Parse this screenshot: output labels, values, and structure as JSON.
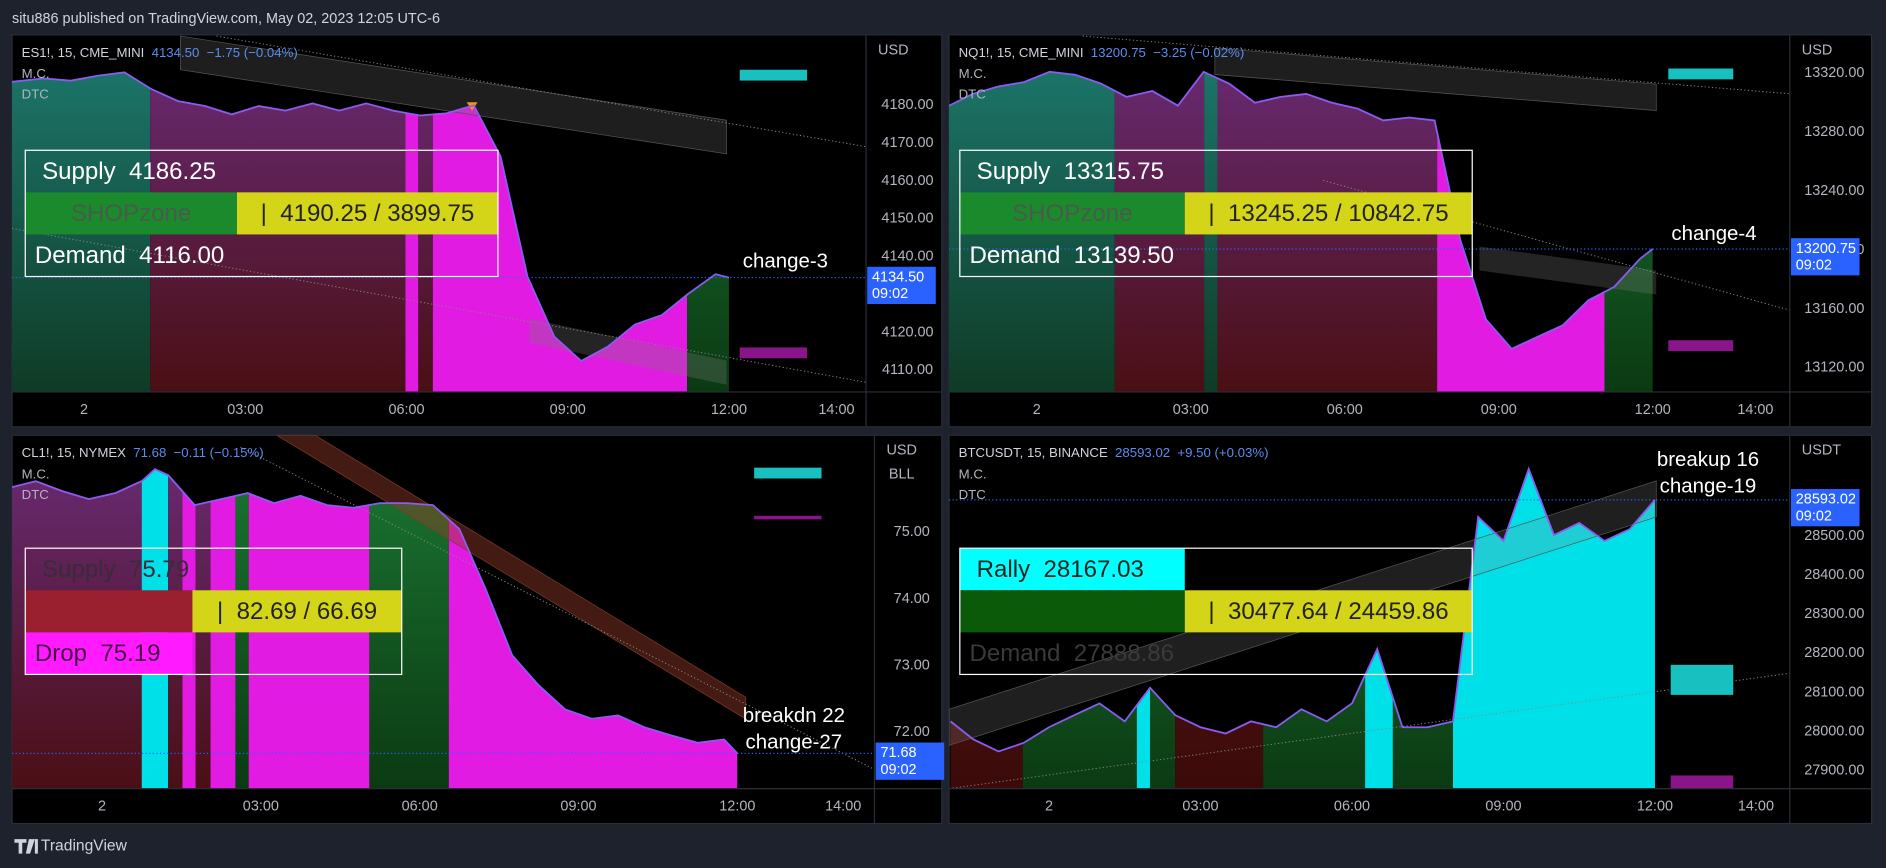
{
  "header": "situ886 published on TradingView.com, May 02, 2023 12:05 UTC-6",
  "footer": "TradingView",
  "chart_data": [
    {
      "type": "area",
      "symbol": "ES1!, 15, CME_MINI",
      "last": "4134.50",
      "change": "−1.75 (−0.04%)",
      "indicators": [
        "M.C.",
        "DTC"
      ],
      "currency": "USD",
      "countdown": "09:02",
      "line_color": "#8a5cf0",
      "price_color": "#2962ff",
      "x": [
        -1.34,
        -0.75,
        -0.25,
        0.25,
        0.75,
        1.25,
        1.75,
        2.25,
        2.75,
        3.25,
        3.75,
        4.25,
        4.75,
        5.25,
        5.75,
        6.25,
        6.75,
        7.25,
        7.75,
        8.25,
        8.75,
        9.25,
        9.75,
        10.25,
        10.75,
        11.25,
        11.75,
        12.0
      ],
      "values": [
        4186.2,
        4187.1,
        4186.5,
        4187.8,
        4188.7,
        4184.3,
        4181.1,
        4179.8,
        4177.6,
        4179.8,
        4178.6,
        4180.5,
        4178.6,
        4180.5,
        4178.6,
        4177.3,
        4177.9,
        4180,
        4166.5,
        4134.8,
        4118.9,
        4112.5,
        4116.3,
        4122.1,
        4124.6,
        4130.3,
        4135.4,
        4134.5
      ],
      "zones": [
        {
          "start": -1.34,
          "end": 1.23,
          "color": "#1d7a70",
          "color2": "#0f3b26"
        },
        {
          "start": 1.23,
          "end": 5.98,
          "color": "#6b2c7a",
          "color2": "#4a0f14"
        },
        {
          "start": 5.98,
          "end": 6.22,
          "color": "#e21be2",
          "color2": "#e21be2"
        },
        {
          "start": 6.22,
          "end": 6.49,
          "color": "#6b2c7a",
          "color2": "#4a0f14"
        },
        {
          "start": 6.49,
          "end": 11.22,
          "color": "#e21be2",
          "color2": "#e21be2"
        },
        {
          "start": 11.22,
          "end": 12.0,
          "color": "#1c7a35",
          "color2": "#0b3a12"
        }
      ],
      "xlim": [
        -1.34,
        14.55
      ],
      "xticks": [
        {
          "value": 0,
          "label": "2"
        },
        {
          "value": 3,
          "label": "03:00"
        },
        {
          "value": 6,
          "label": "06:00"
        },
        {
          "value": 9,
          "label": "09:00"
        },
        {
          "value": 12,
          "label": "12:00"
        },
        {
          "value": 14,
          "label": "14:00"
        }
      ],
      "ylim": [
        4104.3,
        4198.6
      ],
      "yticks": [
        {
          "value": 4110,
          "label": "4110.00"
        },
        {
          "value": 4120,
          "label": "4120.00"
        },
        {
          "value": 4130,
          "label": "4130.00"
        },
        {
          "value": 4140,
          "label": "4140.00"
        },
        {
          "value": 4150,
          "label": "4150.00"
        },
        {
          "value": 4160,
          "label": "4160.00"
        },
        {
          "value": 4170,
          "label": "4170.00"
        },
        {
          "value": 4180,
          "label": "4180.00"
        }
      ],
      "box": {
        "top": "Supply  4186.25",
        "top_color": "#ffffff",
        "mid_left": "SHOPzone",
        "mid_left_bg": "#1a8a2c",
        "mid_left_color": "#4a5a4a",
        "mid_right": "|  4190.25 / 3899.75",
        "mid_right_bg": "#d4d418",
        "mid_right_color": "#222222",
        "bottom": "Demand  4116.00",
        "bottom_color": "#ffffff"
      },
      "annotations": [
        "change-3"
      ]
    },
    {
      "type": "area",
      "symbol": "NQ1!, 15, CME_MINI",
      "last": "13200.75",
      "change": "−3.25 (−0.02%)",
      "indicators": [
        "M.C.",
        "DTC"
      ],
      "currency": "USD",
      "countdown": "09:02",
      "line_color": "#8a5cf0",
      "price_color": "#2962ff",
      "x": [
        -1.71,
        -1.25,
        -0.75,
        -0.25,
        0.25,
        0.75,
        1.25,
        1.75,
        2.25,
        2.75,
        3.25,
        3.75,
        4.25,
        4.75,
        5.25,
        5.75,
        6.25,
        6.75,
        7.25,
        7.75,
        8.25,
        8.75,
        9.25,
        9.75,
        10.25,
        10.75,
        11.25,
        11.75,
        12.0
      ],
      "values": [
        13298,
        13306,
        13311,
        13314,
        13321,
        13319,
        13313,
        13304,
        13308,
        13298,
        13321,
        13313,
        13300,
        13304,
        13306,
        13300,
        13296,
        13288,
        13290,
        13288,
        13207,
        13153,
        13133,
        13141,
        13149,
        13166,
        13175,
        13194,
        13200.75
      ],
      "zones": [
        {
          "start": -1.71,
          "end": 1.52,
          "color": "#1d7a70",
          "color2": "#0f3b26"
        },
        {
          "start": 1.52,
          "end": 3.26,
          "color": "#6b2c7a",
          "color2": "#4a0f14"
        },
        {
          "start": 3.26,
          "end": 3.52,
          "color": "#1d7a70",
          "color2": "#0f3b26"
        },
        {
          "start": 3.52,
          "end": 7.8,
          "color": "#6b2c7a",
          "color2": "#4a0f14"
        },
        {
          "start": 7.8,
          "end": 11.06,
          "color": "#e21be2",
          "color2": "#e21be2"
        },
        {
          "start": 11.06,
          "end": 12.0,
          "color": "#1c7a35",
          "color2": "#0b3a12"
        }
      ],
      "xlim": [
        -1.71,
        14.67
      ],
      "xticks": [
        {
          "value": 0,
          "label": "2"
        },
        {
          "value": 3,
          "label": "03:00"
        },
        {
          "value": 6,
          "label": "06:00"
        },
        {
          "value": 9,
          "label": "09:00"
        },
        {
          "value": 12,
          "label": "12:00"
        },
        {
          "value": 14,
          "label": "14:00"
        }
      ],
      "ylim": [
        13103.7,
        13346.1
      ],
      "yticks": [
        {
          "value": 13120,
          "label": "13120.00"
        },
        {
          "value": 13160,
          "label": "13160.00"
        },
        {
          "value": 13200,
          "label": "13200.00"
        },
        {
          "value": 13240,
          "label": "13240.00"
        },
        {
          "value": 13280,
          "label": "13280.00"
        },
        {
          "value": 13320,
          "label": "13320.00"
        }
      ],
      "box": {
        "top": "Supply  13315.75",
        "top_color": "#ffffff",
        "mid_left": "SHOPzone",
        "mid_left_bg": "#1a8a2c",
        "mid_left_color": "#4a5a4a",
        "mid_right": "|  13245.25 / 10842.75",
        "mid_right_bg": "#d4d418",
        "mid_right_color": "#222222",
        "bottom": "Demand  13139.50",
        "bottom_color": "#ffffff"
      },
      "annotations": [
        "change-4"
      ]
    },
    {
      "type": "area",
      "symbol": "CL1!, 15, NYMEX",
      "last": "71.68",
      "change": "−0.11 (−0.15%)",
      "indicators": [
        "M.C.",
        "DTC"
      ],
      "currency": "USD",
      "unit": "BLL",
      "countdown": "09:02",
      "line_color": "#8a5cf0",
      "price_color": "#2962ff",
      "x": [
        -1.7,
        -1.25,
        -0.75,
        -0.25,
        0.25,
        0.75,
        1.0,
        1.25,
        1.75,
        2.25,
        2.75,
        3.25,
        3.75,
        4.25,
        4.75,
        5.25,
        5.75,
        6.25,
        6.75,
        7.25,
        7.75,
        8.25,
        8.75,
        9.25,
        9.75,
        10.25,
        10.75,
        11.25,
        11.75,
        12.0
      ],
      "values": [
        75.68,
        75.77,
        75.62,
        75.5,
        75.59,
        75.77,
        75.95,
        75.86,
        75.41,
        75.5,
        75.59,
        75.44,
        75.55,
        75.41,
        75.37,
        75.44,
        75.44,
        75.41,
        75.05,
        74.14,
        73.15,
        72.7,
        72.34,
        72.2,
        72.25,
        72.07,
        71.95,
        71.84,
        71.89,
        71.68
      ],
      "zones": [
        {
          "start": -1.7,
          "end": 0.75,
          "color": "#6b2c7a",
          "color2": "#4a0f14"
        },
        {
          "start": 0.75,
          "end": 1.25,
          "color": "#00e0e8",
          "color2": "#00e0e8"
        },
        {
          "start": 1.25,
          "end": 1.52,
          "color": "#6b2c7a",
          "color2": "#4a0f14"
        },
        {
          "start": 1.52,
          "end": 1.77,
          "color": "#e21be2",
          "color2": "#e21be2"
        },
        {
          "start": 1.77,
          "end": 2.05,
          "color": "#6b2c7a",
          "color2": "#4a0f14"
        },
        {
          "start": 2.05,
          "end": 2.52,
          "color": "#e21be2",
          "color2": "#e21be2"
        },
        {
          "start": 2.52,
          "end": 2.77,
          "color": "#1c7a35",
          "color2": "#0b3a12"
        },
        {
          "start": 2.77,
          "end": 5.05,
          "color": "#e21be2",
          "color2": "#e21be2"
        },
        {
          "start": 5.05,
          "end": 6.55,
          "color": "#1c7a35",
          "color2": "#0b3a12"
        },
        {
          "start": 6.55,
          "end": 12.0,
          "color": "#e21be2",
          "color2": "#e21be2"
        }
      ],
      "xlim": [
        -1.7,
        14.59
      ],
      "xticks": [
        {
          "value": 0,
          "label": "2"
        },
        {
          "value": 3,
          "label": "03:00"
        },
        {
          "value": 6,
          "label": "06:00"
        },
        {
          "value": 9,
          "label": "09:00"
        },
        {
          "value": 12,
          "label": "12:00"
        },
        {
          "value": 14,
          "label": "14:00"
        }
      ],
      "ylim": [
        71.15,
        76.46
      ],
      "yticks": [
        {
          "value": 72,
          "label": "72.00"
        },
        {
          "value": 73,
          "label": "73.00"
        },
        {
          "value": 74,
          "label": "74.00"
        },
        {
          "value": 75,
          "label": "75.00"
        }
      ],
      "box": {
        "top": "Supply  75.79",
        "top_color": "#3a2a3a",
        "mid_left_bg": "#9a1f2f",
        "mid_right": "|  82.69 / 66.69",
        "mid_right_bg": "#d4d418",
        "mid_right_color": "#222222",
        "bottom": "Drop  75.19",
        "bottom_bg": "#ff1aff",
        "bottom_color": "#4a0a4a"
      },
      "annotations": [
        "breakdn 22",
        "change-27"
      ]
    },
    {
      "type": "area",
      "symbol": "BTCUSDT, 15, BINANCE",
      "last": "28593.02",
      "change": "+9.50 (+0.03%)",
      "indicators": [
        "M.C.",
        "DTC"
      ],
      "currency": "USDT",
      "countdown": "09:02",
      "line_color": "#8a5cf0",
      "price_color": "#2962ff",
      "x": [
        -1.95,
        -1.5,
        -1.0,
        -0.5,
        0,
        0.5,
        1.0,
        1.5,
        2.0,
        2.5,
        3.0,
        3.5,
        4.0,
        4.5,
        5.0,
        5.5,
        6.0,
        6.5,
        7.0,
        7.5,
        8.0,
        8.5,
        9.0,
        9.5,
        10.0,
        10.5,
        11.0,
        11.5,
        12.0
      ],
      "values": [
        28026,
        27980,
        27949,
        27971,
        28011,
        28042,
        28072,
        28026,
        28112,
        28042,
        28011,
        27995,
        28026,
        28011,
        28057,
        28026,
        28072,
        28211,
        28011,
        28011,
        28026,
        28549,
        28488,
        28672,
        28503,
        28534,
        28488,
        28518,
        28593.02
      ],
      "zones": [
        {
          "start": -1.98,
          "end": -0.52,
          "color": "#5a1a1a",
          "color2": "#3c0a0a"
        },
        {
          "start": -0.52,
          "end": 1.74,
          "color": "#1c7a35",
          "color2": "#0b3a12"
        },
        {
          "start": 1.74,
          "end": 2.0,
          "color": "#00e0e8",
          "color2": "#00e0e8"
        },
        {
          "start": 2.0,
          "end": 2.5,
          "color": "#1c7a35",
          "color2": "#0b3a12"
        },
        {
          "start": 2.5,
          "end": 4.24,
          "color": "#5a1a1a",
          "color2": "#3c0a0a"
        },
        {
          "start": 4.24,
          "end": 6.26,
          "color": "#1c7a35",
          "color2": "#0b3a12"
        },
        {
          "start": 6.26,
          "end": 6.81,
          "color": "#00e0e8",
          "color2": "#00e0e8"
        },
        {
          "start": 6.81,
          "end": 8.0,
          "color": "#1c7a35",
          "color2": "#0b3a12"
        },
        {
          "start": 8.0,
          "end": 12.05,
          "color": "#00e0e8",
          "color2": "#00e0e8"
        }
      ],
      "xlim": [
        -1.98,
        14.67
      ],
      "xticks": [
        {
          "value": 0,
          "label": "2"
        },
        {
          "value": 3,
          "label": "03:00"
        },
        {
          "value": 6,
          "label": "06:00"
        },
        {
          "value": 9,
          "label": "09:00"
        },
        {
          "value": 12,
          "label": "12:00"
        },
        {
          "value": 14,
          "label": "14:00"
        }
      ],
      "ylim": [
        27853.8,
        28758.5
      ],
      "yticks": [
        {
          "value": 27900,
          "label": "27900.00"
        },
        {
          "value": 28000,
          "label": "28000.00"
        },
        {
          "value": 28100,
          "label": "28100.00"
        },
        {
          "value": 28200,
          "label": "28200.00"
        },
        {
          "value": 28300,
          "label": "28300.00"
        },
        {
          "value": 28400,
          "label": "28400.00"
        },
        {
          "value": 28500,
          "label": "28500.00"
        }
      ],
      "box": {
        "top": "Rally  28167.03",
        "top_bg": "#00ffff",
        "top_color": "#222222",
        "mid_left_bg": "#0a5a0a",
        "mid_right": "|  30477.64 / 24459.86",
        "mid_right_bg": "#d4d418",
        "mid_right_color": "#222222",
        "bottom": "Demand  27888.86",
        "bottom_color": "#3a3a3a"
      },
      "annotations": [
        "breakup 16",
        "change-19"
      ]
    }
  ]
}
